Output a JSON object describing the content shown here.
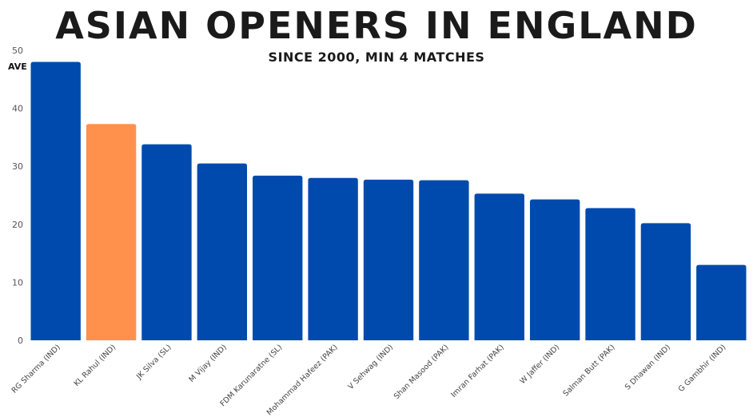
{
  "chart_data": {
    "type": "bar",
    "title": "ASIAN OPENERS IN ENGLAND",
    "subtitle": "SINCE 2000, MIN 4 MATCHES",
    "ylabel": "AVE",
    "xlabel": "",
    "ylim": [
      0,
      50
    ],
    "yticks": [
      0,
      10,
      20,
      30,
      40,
      50
    ],
    "grid": false,
    "categories": [
      "RG Sharma (IND)",
      "KL Rahul (IND)",
      "JK Silva (SL)",
      "M Vijay (IND)",
      "FDM Karunaratne (SL)",
      "Mohammad Hafeez (PAK)",
      "V Sehwag (IND)",
      "Shan Masood (PAK)",
      "Imran Farhat (PAK)",
      "W Jaffer (IND)",
      "Salman Butt (PAK)",
      "S Dhawan (IND)",
      "G Gambhir (IND)"
    ],
    "values": [
      48.0,
      37.3,
      33.8,
      30.5,
      28.4,
      28.0,
      27.7,
      27.6,
      25.3,
      24.3,
      22.8,
      20.2,
      13.0
    ],
    "colors": {
      "default": "#004aad",
      "highlight": "#ff914d"
    },
    "highlight_index": 1
  }
}
